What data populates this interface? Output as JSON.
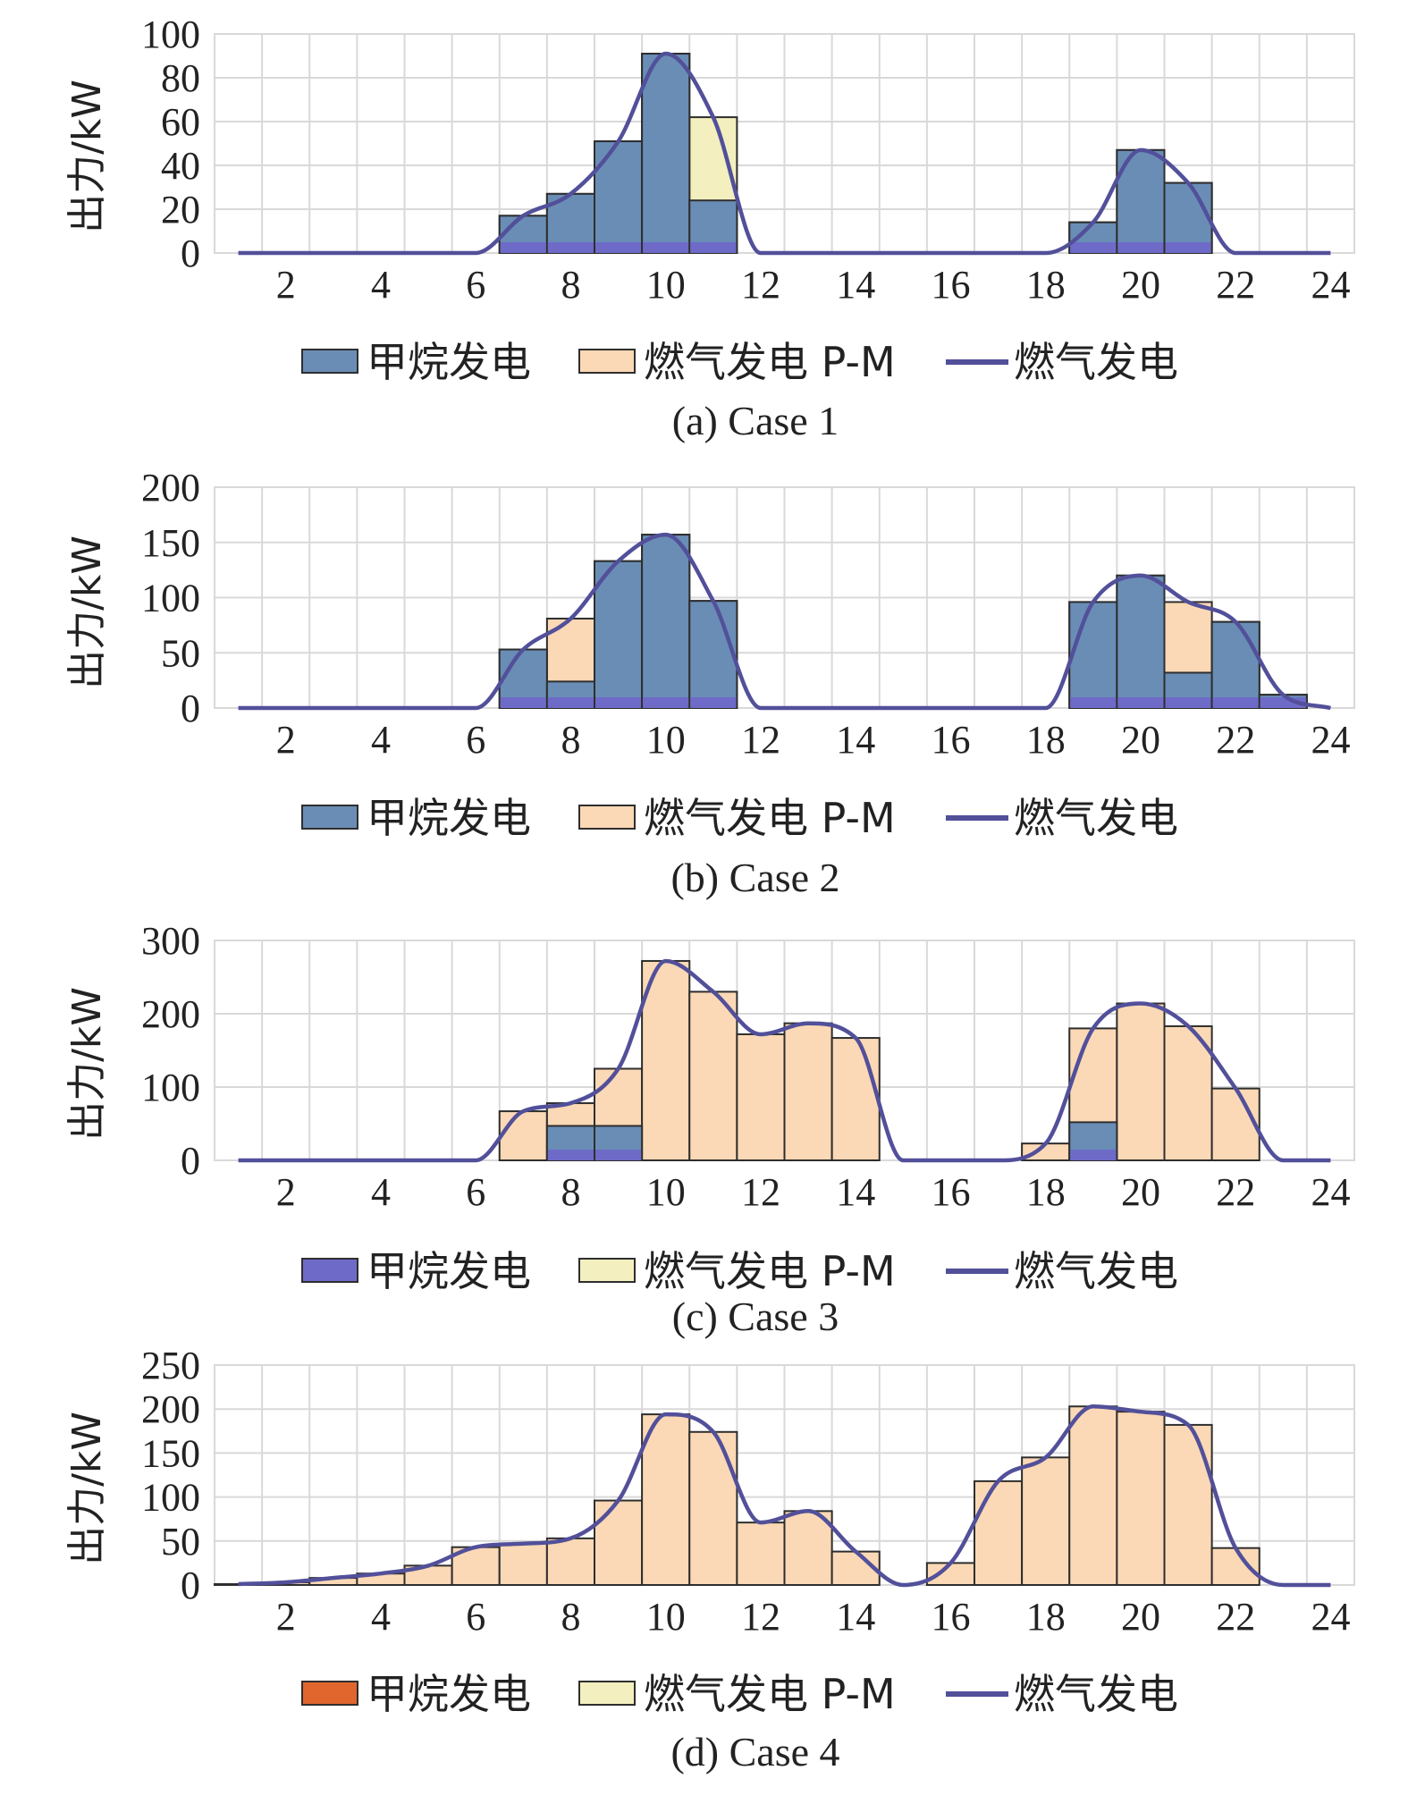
{
  "legend_labels": [
    "甲烷发电",
    "燃气发电 P-M",
    "燃气发电"
  ],
  "colors": {
    "methane": "#6a8db5",
    "methane_dark": "#6e6ac8",
    "methane_case4": "#e0662e",
    "gas_pm": "#fbd9b6",
    "gas_pm_alt": "#f3efbf",
    "line": "#52509a",
    "grid": "#d9d9d9",
    "bar_edge": "#2e2e2e"
  },
  "chart_data": [
    {
      "type": "bar",
      "caption": "(a) Case 1",
      "ylabel": "出力/kW",
      "ylim": [
        0,
        100
      ],
      "yticks": [
        0,
        20,
        40,
        60,
        80,
        100
      ],
      "xticks": [
        2,
        4,
        6,
        8,
        10,
        12,
        14,
        16,
        18,
        20,
        22,
        24
      ],
      "hours": [
        1,
        2,
        3,
        4,
        5,
        6,
        7,
        8,
        9,
        10,
        11,
        12,
        13,
        14,
        15,
        16,
        17,
        18,
        19,
        20,
        21,
        22,
        23,
        24
      ],
      "series": [
        {
          "name": "甲烷发电",
          "values": [
            0,
            0,
            0,
            0,
            0,
            0,
            17,
            27,
            51,
            91,
            24,
            0,
            0,
            0,
            0,
            0,
            0,
            0,
            14,
            47,
            32,
            0,
            0,
            0
          ]
        },
        {
          "name": "燃气发电 P-M",
          "values": [
            0,
            0,
            0,
            0,
            0,
            0,
            17,
            27,
            51,
            91,
            62,
            0,
            0,
            0,
            0,
            0,
            0,
            0,
            14,
            47,
            32,
            0,
            0,
            0
          ]
        },
        {
          "name": "燃气发电",
          "values": [
            0,
            0,
            0,
            0,
            0,
            0,
            17,
            27,
            51,
            91,
            62,
            0,
            0,
            0,
            0,
            0,
            0,
            0,
            14,
            47,
            32,
            0,
            0,
            0
          ]
        }
      ]
    },
    {
      "type": "bar",
      "caption": "(b) Case 2",
      "ylabel": "出力/kW",
      "ylim": [
        0,
        200
      ],
      "yticks": [
        0,
        50,
        100,
        150,
        200
      ],
      "xticks": [
        2,
        4,
        6,
        8,
        10,
        12,
        14,
        16,
        18,
        20,
        22,
        24
      ],
      "hours": [
        1,
        2,
        3,
        4,
        5,
        6,
        7,
        8,
        9,
        10,
        11,
        12,
        13,
        14,
        15,
        16,
        17,
        18,
        19,
        20,
        21,
        22,
        23,
        24
      ],
      "series": [
        {
          "name": "甲烷发电",
          "values": [
            0,
            0,
            0,
            0,
            0,
            0,
            53,
            24,
            133,
            157,
            97,
            0,
            0,
            0,
            0,
            0,
            0,
            0,
            96,
            120,
            32,
            78,
            12,
            0
          ]
        },
        {
          "name": "燃气发电 P-M",
          "values": [
            0,
            0,
            0,
            0,
            0,
            0,
            53,
            81,
            133,
            157,
            97,
            0,
            0,
            0,
            0,
            0,
            0,
            0,
            96,
            120,
            96,
            78,
            12,
            0
          ]
        },
        {
          "name": "燃气发电",
          "values": [
            0,
            0,
            0,
            0,
            0,
            0,
            53,
            81,
            133,
            157,
            97,
            0,
            0,
            0,
            0,
            0,
            0,
            0,
            96,
            120,
            96,
            78,
            12,
            0
          ]
        }
      ]
    },
    {
      "type": "bar",
      "caption": "(c) Case 3",
      "ylabel": "出力/kW",
      "ylim": [
        0,
        300
      ],
      "yticks": [
        0,
        100,
        200,
        300
      ],
      "xticks": [
        2,
        4,
        6,
        8,
        10,
        12,
        14,
        16,
        18,
        20,
        22,
        24
      ],
      "hours": [
        1,
        2,
        3,
        4,
        5,
        6,
        7,
        8,
        9,
        10,
        11,
        12,
        13,
        14,
        15,
        16,
        17,
        18,
        19,
        20,
        21,
        22,
        23,
        24
      ],
      "series": [
        {
          "name": "甲烷发电",
          "values": [
            0,
            0,
            0,
            0,
            0,
            0,
            0,
            47,
            47,
            0,
            0,
            0,
            0,
            0,
            0,
            0,
            0,
            0,
            52,
            0,
            0,
            0,
            0,
            0
          ]
        },
        {
          "name": "燃气发电 P-M",
          "values": [
            0,
            0,
            0,
            0,
            0,
            0,
            67,
            78,
            125,
            272,
            230,
            172,
            187,
            167,
            0,
            0,
            0,
            23,
            180,
            214,
            183,
            98,
            0,
            0
          ]
        },
        {
          "name": "燃气发电",
          "values": [
            0,
            0,
            0,
            0,
            0,
            0,
            67,
            78,
            125,
            272,
            230,
            172,
            187,
            167,
            0,
            0,
            0,
            23,
            180,
            214,
            183,
            98,
            0,
            0
          ]
        }
      ]
    },
    {
      "type": "bar",
      "caption": "(d) Case 4",
      "ylabel": "出力/kW",
      "ylim": [
        0,
        250
      ],
      "yticks": [
        0,
        50,
        100,
        150,
        200,
        250
      ],
      "xticks": [
        2,
        4,
        6,
        8,
        10,
        12,
        14,
        16,
        18,
        20,
        22,
        24
      ],
      "hours": [
        1,
        2,
        3,
        4,
        5,
        6,
        7,
        8,
        9,
        10,
        11,
        12,
        13,
        14,
        15,
        16,
        17,
        18,
        19,
        20,
        21,
        22,
        23,
        24
      ],
      "series": [
        {
          "name": "甲烷发电",
          "values": [
            0,
            0,
            0,
            0,
            0,
            0,
            0,
            0,
            0,
            0,
            0,
            0,
            0,
            0,
            0,
            0,
            0,
            0,
            0,
            0,
            0,
            0,
            0,
            0
          ]
        },
        {
          "name": "燃气发电 P-M",
          "values": [
            1,
            3,
            8,
            13,
            22,
            43,
            47,
            53,
            96,
            194,
            174,
            71,
            84,
            38,
            0,
            25,
            118,
            145,
            203,
            197,
            182,
            42,
            0,
            0
          ]
        },
        {
          "name": "燃气发电",
          "values": [
            1,
            3,
            8,
            13,
            22,
            43,
            47,
            53,
            96,
            194,
            174,
            71,
            84,
            38,
            0,
            25,
            118,
            145,
            203,
            197,
            182,
            42,
            0,
            0
          ]
        }
      ]
    }
  ]
}
